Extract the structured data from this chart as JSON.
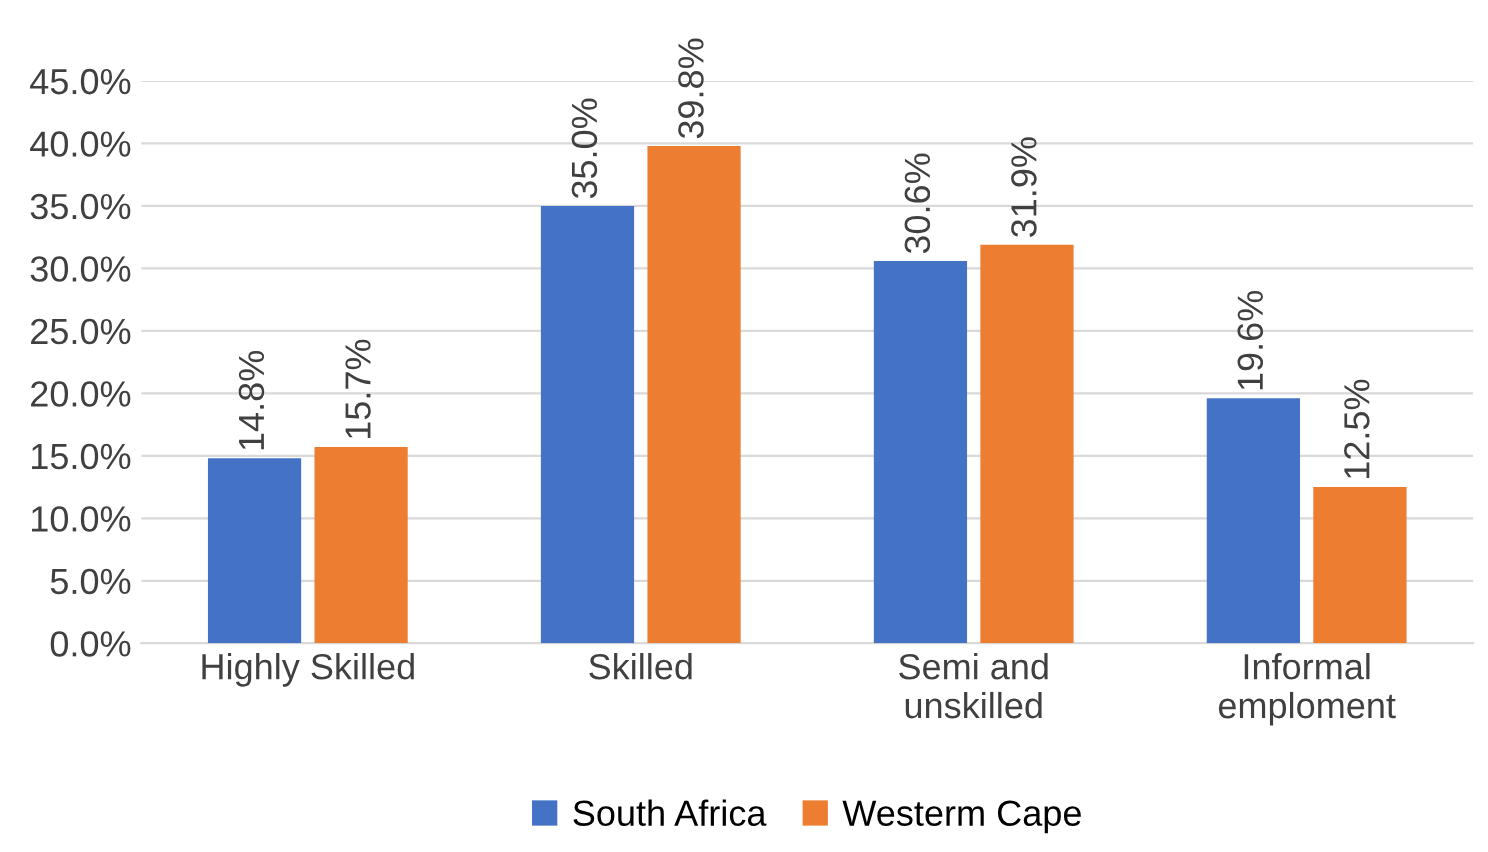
{
  "chart_data": {
    "type": "bar",
    "categories": [
      "Highly Skilled",
      "Skilled",
      "Semi and\nunskilled",
      "Informal\nemploment"
    ],
    "series": [
      {
        "name": "South Africa",
        "color": "#4472c4",
        "values": [
          14.8,
          35.0,
          30.6,
          19.6
        ],
        "value_labels": [
          "14.8%",
          "35.0%",
          "30.6%",
          "19.6%"
        ]
      },
      {
        "name": "Westerm Cape",
        "color": "#ed7d31",
        "values": [
          15.7,
          39.8,
          31.9,
          12.5
        ],
        "value_labels": [
          "15.7%",
          "39.8%",
          "31.9%",
          "12.5%"
        ]
      }
    ],
    "ylim": [
      0,
      45
    ],
    "yticks": [
      {
        "value": 0,
        "label": "0.0%"
      },
      {
        "value": 5,
        "label": "5.0%"
      },
      {
        "value": 10,
        "label": "10.0%"
      },
      {
        "value": 15,
        "label": "15.0%"
      },
      {
        "value": 20,
        "label": "20.0%"
      },
      {
        "value": 25,
        "label": "25.0%"
      },
      {
        "value": 30,
        "label": "30.0%"
      },
      {
        "value": 35,
        "label": "35.0%"
      },
      {
        "value": 40,
        "label": "40.0%"
      },
      {
        "value": 45,
        "label": "45.0%"
      }
    ],
    "grid": "y",
    "legend": "bottom"
  }
}
